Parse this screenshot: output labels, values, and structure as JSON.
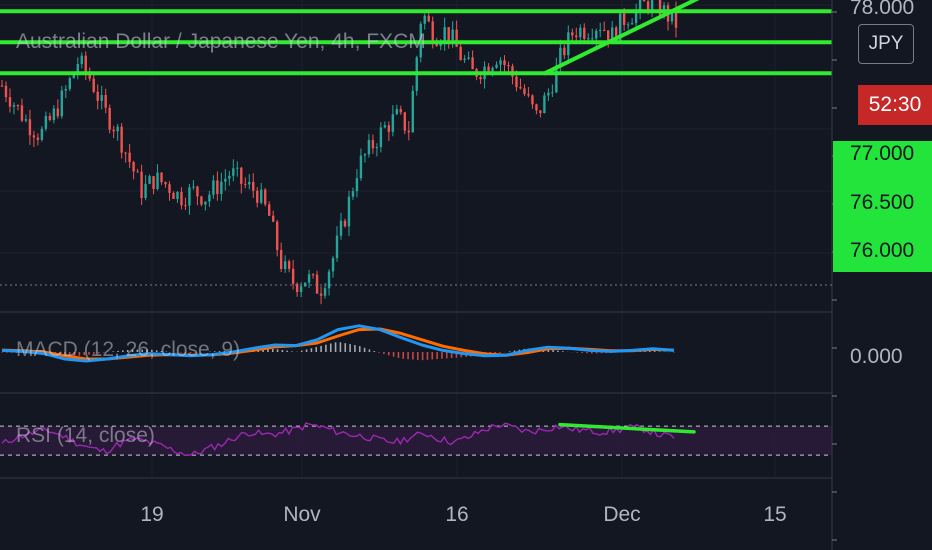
{
  "header": {
    "title": "Australian Dollar / Japanese Yen, 4h, FXCM",
    "currency_badge": "JPY",
    "countdown": "52:30"
  },
  "indicators": {
    "macd_label": "MACD (12, 26, close, 9)",
    "rsi_label": "RSI (14, close)"
  },
  "price_axis": {
    "ticks": [
      "78.000",
      "77.000",
      "76.500",
      "76.000"
    ],
    "macd_tick": "0.000"
  },
  "time_axis": {
    "ticks": [
      "19",
      "Nov",
      "16",
      "Dec",
      "15"
    ]
  },
  "colors": {
    "background": "#131722",
    "bull": "#26a69a",
    "bear": "#ef5350",
    "drawing": "#2fea2f",
    "macd_line": "#2196f3",
    "signal_line": "#ff6d00",
    "rsi_line": "#9c27b0",
    "countdown_bg": "#c62828",
    "price_tag_bg": "#22e43a"
  },
  "chart_data": {
    "type": "candlestick",
    "title": "Australian Dollar / Japanese Yen, 4h, FXCM",
    "ylim": [
      75.5,
      78.0
    ],
    "y_ticks": [
      76.0,
      76.5,
      77.0,
      78.0
    ],
    "x_ticks": [
      "19",
      "Nov",
      "16",
      "Dec",
      "15"
    ],
    "close_path": [
      77.35,
      77.2,
      77.05,
      76.95,
      77.1,
      77.3,
      77.55,
      77.4,
      77.15,
      77.0,
      76.75,
      76.5,
      76.6,
      76.55,
      76.45,
      76.5,
      76.45,
      76.55,
      76.65,
      76.55,
      76.5,
      76.3,
      75.9,
      75.75,
      75.8,
      75.7,
      75.95,
      76.3,
      76.7,
      76.85,
      77.0,
      77.1,
      77.0,
      77.95,
      77.75,
      77.8,
      77.6,
      77.45,
      77.5,
      77.6,
      77.45,
      77.3,
      77.1,
      77.3,
      77.6,
      77.8,
      77.8,
      77.85,
      77.75,
      77.9,
      77.95,
      78.05,
      77.95,
      77.85
    ],
    "horizontal_lines": [
      77.95,
      77.7,
      77.45
    ],
    "trendline": {
      "from": {
        "x": "Nov 22",
        "y": 77.45
      },
      "to": {
        "x": "Dec 6",
        "y": 78.1
      }
    },
    "macd": {
      "label": "MACD (12, 26, close, 9)",
      "zero_tick": "0.000",
      "macd_path": [
        0.05,
        0.02,
        -0.05,
        -0.22,
        -0.28,
        -0.22,
        -0.12,
        -0.05,
        -0.08,
        -0.12,
        -0.08,
        0.0,
        0.12,
        0.22,
        0.2,
        0.38,
        0.7,
        0.82,
        0.7,
        0.45,
        0.22,
        0.05,
        -0.05,
        -0.12,
        -0.1,
        0.05,
        0.15,
        0.12,
        0.05,
        0.02,
        0.05,
        0.1,
        0.05
      ],
      "signal_path": [
        0.06,
        0.04,
        0.0,
        -0.12,
        -0.22,
        -0.22,
        -0.16,
        -0.1,
        -0.08,
        -0.1,
        -0.09,
        -0.03,
        0.06,
        0.16,
        0.2,
        0.28,
        0.5,
        0.7,
        0.72,
        0.58,
        0.38,
        0.18,
        0.05,
        -0.06,
        -0.1,
        -0.02,
        0.1,
        0.12,
        0.08,
        0.04,
        0.04,
        0.08,
        0.06
      ]
    },
    "rsi": {
      "label": "RSI (14, close)",
      "levels": [
        70,
        30
      ],
      "rsi_path": [
        45,
        55,
        60,
        65,
        58,
        48,
        40,
        35,
        45,
        52,
        48,
        42,
        35,
        30,
        38,
        45,
        55,
        62,
        58,
        60,
        65,
        72,
        68,
        62,
        58,
        55,
        50,
        48,
        55,
        60,
        52,
        48,
        55,
        65,
        72,
        68,
        62,
        65,
        70,
        66,
        64,
        62,
        64,
        68,
        66,
        58,
        55
      ],
      "divergence_line": {
        "from": 72,
        "to": 62
      }
    }
  }
}
